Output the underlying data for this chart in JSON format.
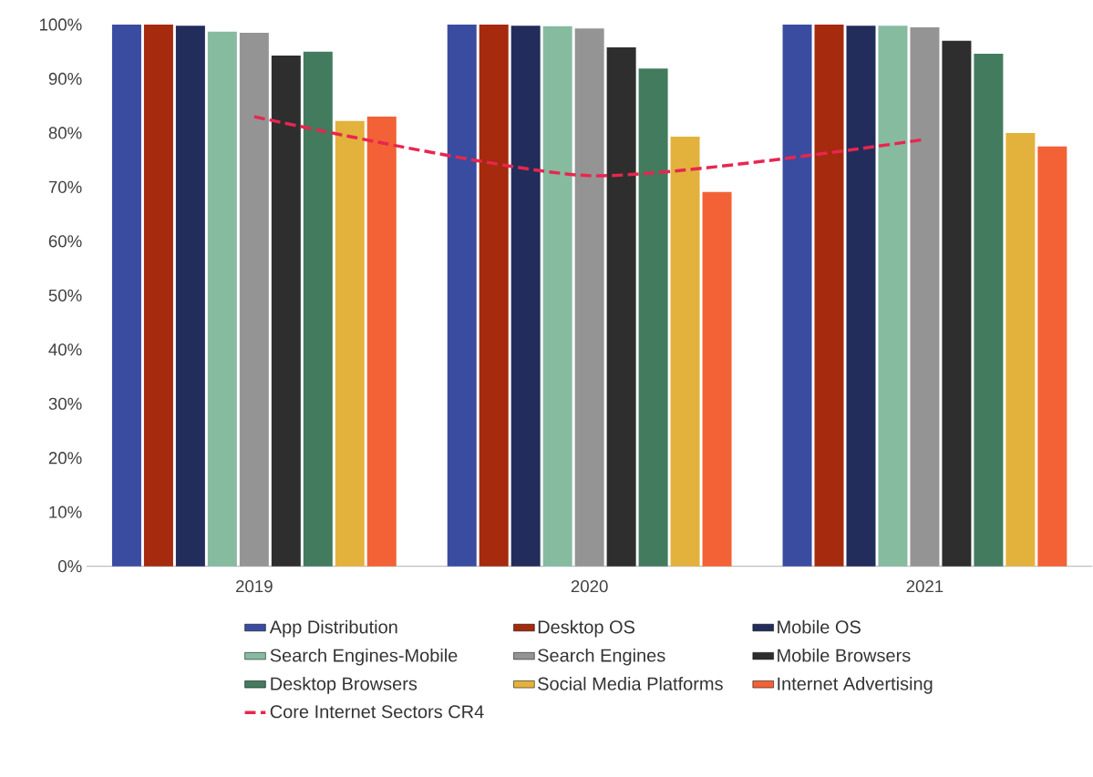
{
  "chart_data": {
    "type": "bar",
    "categories": [
      "2019",
      "2020",
      "2021"
    ],
    "ylim": [
      0,
      100
    ],
    "yticks": [
      {
        "value": 0,
        "label": "0%"
      },
      {
        "value": 10,
        "label": "10%"
      },
      {
        "value": 20,
        "label": "20%"
      },
      {
        "value": 30,
        "label": "30%"
      },
      {
        "value": 40,
        "label": "40%"
      },
      {
        "value": 50,
        "label": "50%"
      },
      {
        "value": 60,
        "label": "60%"
      },
      {
        "value": 70,
        "label": "70%"
      },
      {
        "value": 80,
        "label": "80%"
      },
      {
        "value": 90,
        "label": "90%"
      },
      {
        "value": 100,
        "label": "100%"
      }
    ],
    "legend": "bottom",
    "series": [
      {
        "name": "App Distribution",
        "color": "#3a4ca0",
        "values": [
          100,
          100,
          100
        ]
      },
      {
        "name": "Desktop OS",
        "color": "#a52a0e",
        "values": [
          100,
          100,
          100
        ]
      },
      {
        "name": "Mobile OS",
        "color": "#222d5c",
        "values": [
          99.8,
          99.8,
          99.8
        ]
      },
      {
        "name": "Search Engines-Mobile",
        "color": "#86bba0",
        "values": [
          98.7,
          99.7,
          99.8
        ]
      },
      {
        "name": "Search Engines",
        "color": "#949494",
        "values": [
          98.5,
          99.3,
          99.5
        ]
      },
      {
        "name": "Mobile Browsers",
        "color": "#2e2e2e",
        "values": [
          94.3,
          95.8,
          97.0
        ]
      },
      {
        "name": "Desktop Browsers",
        "color": "#437b5f",
        "values": [
          95.0,
          91.9,
          94.6
        ]
      },
      {
        "name": "Social Media Platforms",
        "color": "#e3b23d",
        "values": [
          82.2,
          79.3,
          80.0
        ]
      },
      {
        "name": "Internet Advertising",
        "color": "#f26236",
        "values": [
          83.0,
          69.1,
          77.5
        ]
      },
      {
        "name": "Core Internet Sectors CR4",
        "type": "line",
        "line_style": "dashed",
        "color": "#e8264f",
        "values": [
          83.0,
          72.1,
          78.8
        ]
      }
    ]
  }
}
